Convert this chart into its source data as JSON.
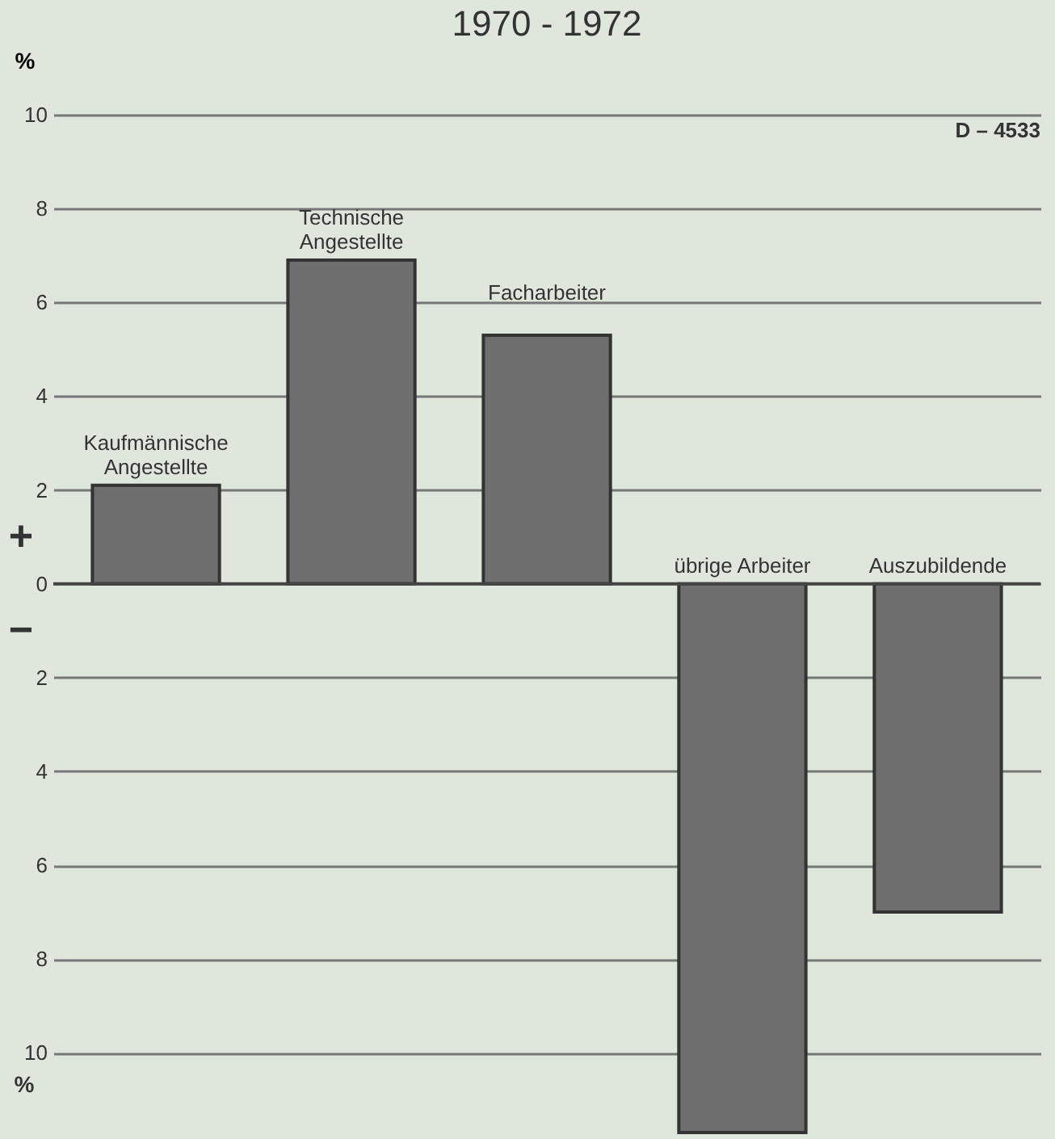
{
  "chart_data": {
    "type": "bar",
    "title": "1970 - 1972",
    "ylabel": "%",
    "categories": [
      "Kaufmännische Angestellte",
      "Technische Angestellte",
      "Facharbeiter",
      "übrige Arbeiter",
      "Auszubildende"
    ],
    "values": [
      2.1,
      6.9,
      5.3,
      -11.7,
      -7.0
    ],
    "color": "#6e6e6e",
    "ylim": [
      -11.7,
      10
    ],
    "yticks": [
      {
        "value": -10,
        "label": "10"
      },
      {
        "value": -8,
        "label": "8"
      },
      {
        "value": -6,
        "label": "6"
      },
      {
        "value": -4,
        "label": "4"
      },
      {
        "value": -2,
        "label": "2"
      },
      0,
      2,
      4,
      6,
      8,
      10
    ],
    "grid": "y",
    "annotations": [
      "D – 4533",
      "+",
      "−",
      "%"
    ]
  }
}
